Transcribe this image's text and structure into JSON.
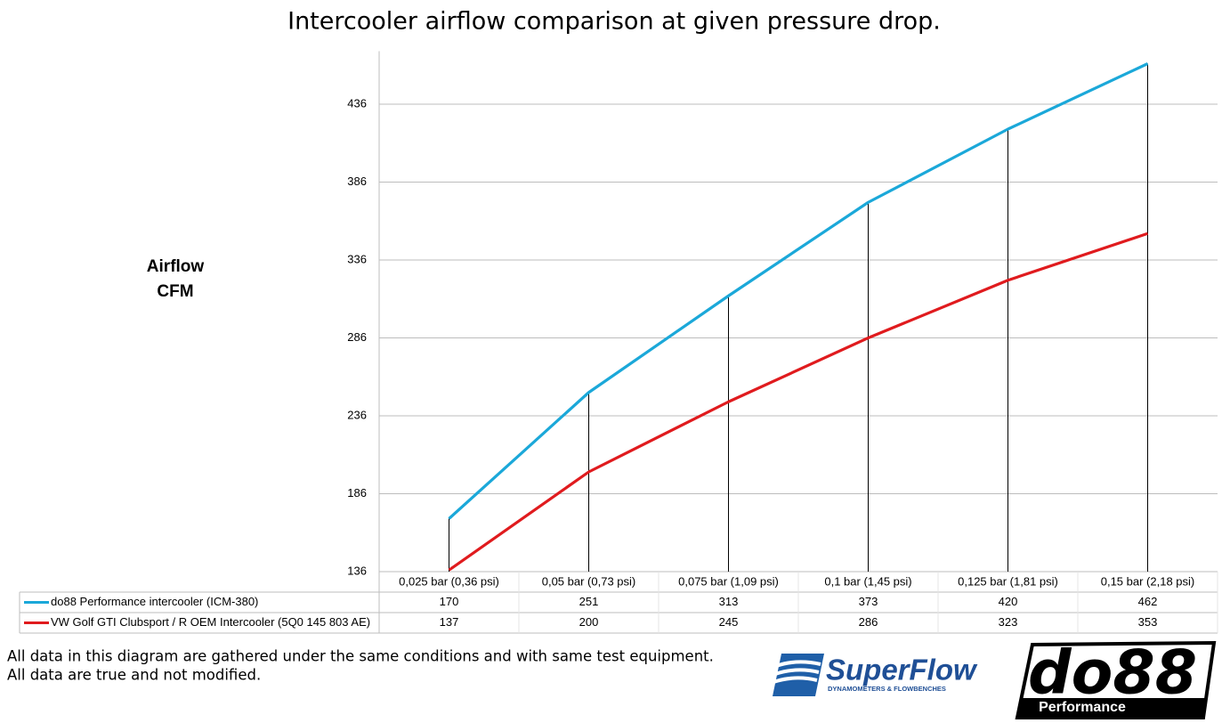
{
  "chart_data": {
    "type": "line",
    "title": "Intercooler airflow comparison at given pressure drop.",
    "ylabel": [
      "Airflow",
      "CFM"
    ],
    "categories": [
      "0,025 bar (0,36 psi)",
      "0,05 bar (0,73 psi)",
      "0,075 bar (1,09 psi)",
      "0,1 bar (1,45 psi)",
      "0,125 bar (1,81 psi)",
      "0,15 bar (2,18 psi)"
    ],
    "series": [
      {
        "name": "do88 Performance intercooler (ICM-380)",
        "color": "#1ba8d9",
        "values": [
          170,
          251,
          313,
          373,
          420,
          462
        ]
      },
      {
        "name": "VW Golf GTI Clubsport / R OEM Intercooler (5Q0 145 803 AE)",
        "color": "#e01b1e",
        "values": [
          137,
          200,
          245,
          286,
          323,
          353
        ]
      }
    ],
    "ylim": [
      136,
      470
    ],
    "yticks": [
      136,
      186,
      236,
      286,
      336,
      386,
      436
    ],
    "grid": true,
    "drop_lines": true,
    "notes": [
      "All data in this diagram are gathered under the same conditions and with same test equipment.",
      "All data are true and not modified."
    ],
    "logos": {
      "superflow": "SuperFlow",
      "superflow_tagline": "DYNAMOMETERS & FLOWBENCHES",
      "do88": "do88",
      "do88_sub": "Performance"
    }
  }
}
